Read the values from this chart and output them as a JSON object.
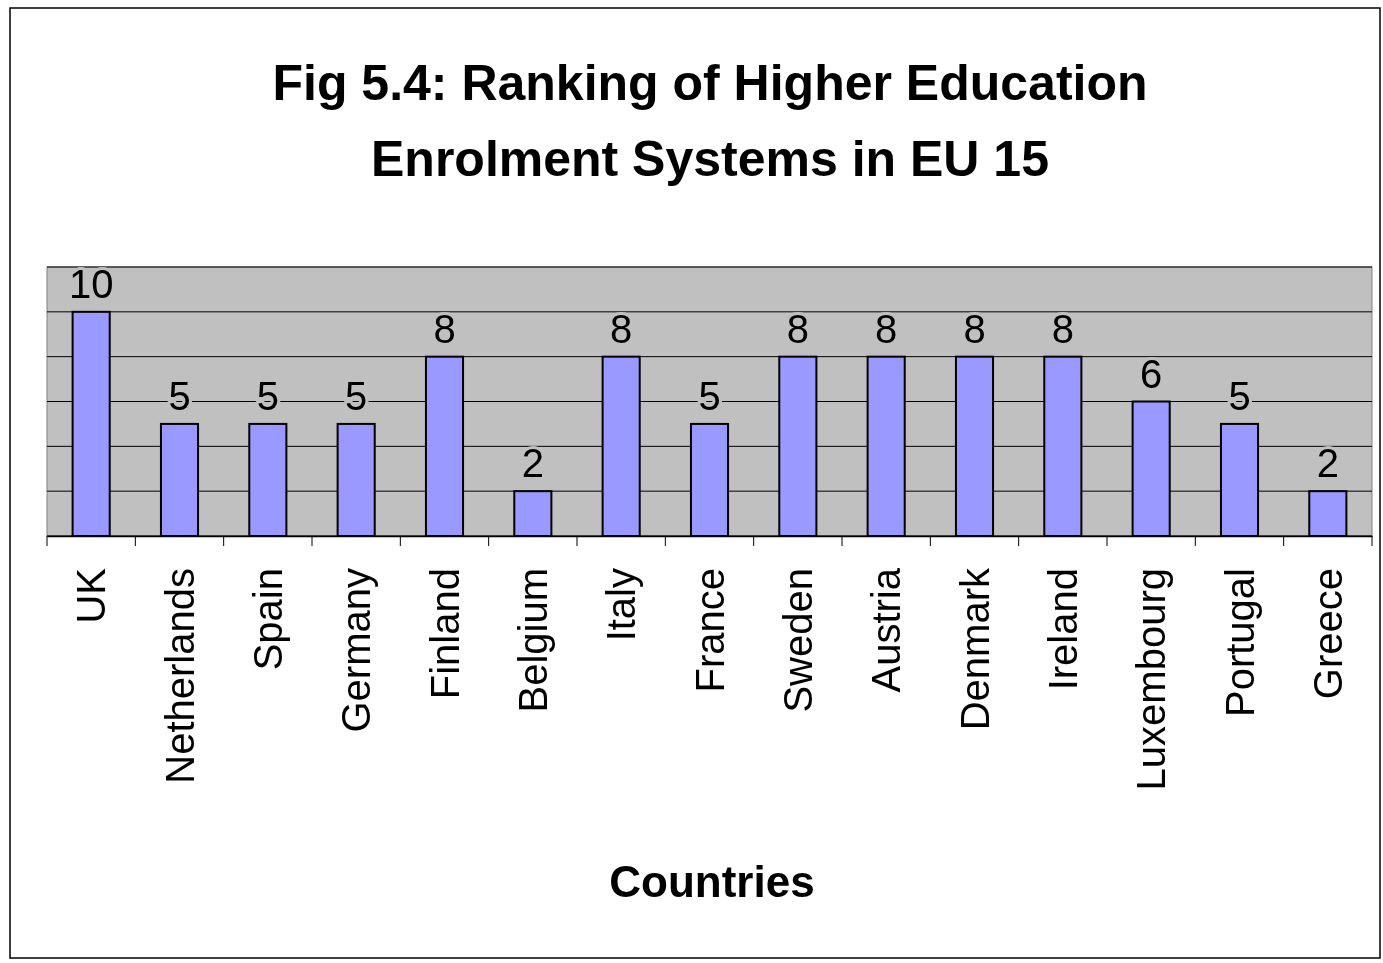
{
  "chart_data": {
    "type": "bar",
    "title": "Fig 5.4: Ranking of Higher Education Enrolment Systems in EU 15",
    "xlabel": "Countries",
    "categories": [
      "UK",
      "Netherlands",
      "Spain",
      "Germany",
      "Finland",
      "Belgium",
      "Italy",
      "France",
      "Sweden",
      "Austria",
      "Denmark",
      "Ireland",
      "Luxembourg",
      "Portugal",
      "Greece"
    ],
    "values": [
      10,
      5,
      5,
      5,
      8,
      2,
      8,
      5,
      8,
      8,
      8,
      8,
      6,
      5,
      2
    ],
    "color": "#9999ff",
    "ylim": [
      0,
      12
    ],
    "yticks": [
      {
        "value": 0,
        "label": null
      },
      {
        "value": 2,
        "label": null
      },
      {
        "value": 4,
        "label": null
      },
      {
        "value": 6,
        "label": null
      },
      {
        "value": 8,
        "label": null
      },
      {
        "value": 10,
        "label": null
      },
      {
        "value": 12,
        "label": null
      }
    ],
    "tick_labels": "x",
    "grid": "y",
    "data_labels": true
  }
}
